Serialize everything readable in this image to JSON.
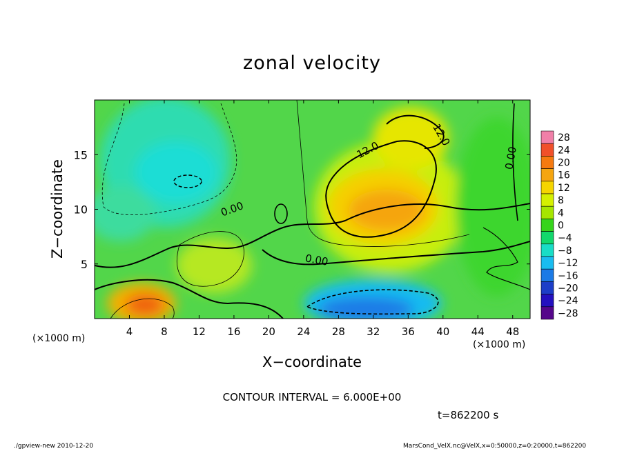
{
  "chart_data": {
    "type": "heatmap",
    "title": "zonal velocity",
    "xlabel": "X−coordinate",
    "ylabel": "Z−coordinate",
    "x_unit_label": "(×1000 m)",
    "xlim": [
      0,
      50
    ],
    "ylim": [
      0,
      20
    ],
    "xticks": [
      "4",
      "8",
      "12",
      "16",
      "20",
      "24",
      "28",
      "32",
      "36",
      "40",
      "44",
      "48"
    ],
    "yticks": [
      "5",
      "10",
      "15"
    ],
    "colorbar": {
      "levels": [
        "28",
        "24",
        "20",
        "16",
        "12",
        "8",
        "4",
        "0",
        "−4",
        "−8",
        "−12",
        "−16",
        "−20",
        "−24",
        "−28"
      ],
      "colors": [
        "#f07fa8",
        "#f0502a",
        "#f57a10",
        "#f5a510",
        "#f5d500",
        "#d5f000",
        "#a6e600",
        "#36d41b",
        "#12d86c",
        "#18ddc6",
        "#19bcf0",
        "#1b7ae6",
        "#1d3ec8",
        "#2410bf",
        "#55068a"
      ]
    },
    "contour_labels": [
      "12.0",
      "12.0",
      "0.00",
      "0.00",
      "0.00"
    ],
    "annotation": "CONTOUR INTERVAL = 6.000E+00",
    "time_label": "t=862200 s"
  },
  "footer": {
    "left": "./gpview-new 2010-12-20",
    "right": "MarsCond_VelX.nc@VelX,x=0:50000,z=0:20000,t=862200"
  },
  "colors": {
    "background_green": "#5ad94a",
    "contour_line": "#000000"
  }
}
